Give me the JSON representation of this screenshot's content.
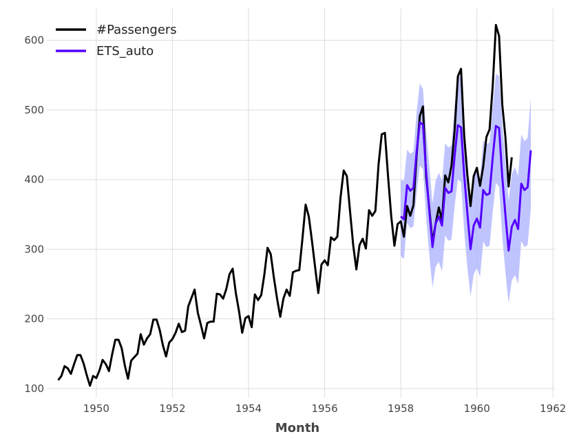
{
  "chart_data": {
    "type": "line",
    "title": "",
    "xlabel": "Month",
    "ylabel": "",
    "xlim": [
      1948.7,
      1962.05
    ],
    "ylim": [
      87,
      646
    ],
    "x_ticks": [
      1950,
      1952,
      1954,
      1956,
      1958,
      1960,
      1962
    ],
    "y_ticks": [
      100,
      200,
      300,
      400,
      500,
      600
    ],
    "grid": true,
    "legend_position": "top-left",
    "series": [
      {
        "name": "#Passengers",
        "color": "#000000",
        "start_year": 1949,
        "values": [
          112,
          118,
          132,
          129,
          121,
          135,
          148,
          148,
          136,
          119,
          104,
          118,
          115,
          126,
          141,
          135,
          125,
          149,
          170,
          170,
          158,
          133,
          114,
          140,
          145,
          150,
          178,
          163,
          172,
          178,
          199,
          199,
          184,
          162,
          146,
          166,
          171,
          180,
          193,
          181,
          183,
          218,
          230,
          242,
          209,
          191,
          172,
          194,
          196,
          196,
          236,
          235,
          229,
          243,
          264,
          272,
          237,
          211,
          180,
          201,
          204,
          188,
          235,
          227,
          234,
          264,
          302,
          293,
          259,
          229,
          203,
          229,
          242,
          233,
          267,
          269,
          270,
          315,
          364,
          347,
          312,
          274,
          237,
          278,
          284,
          277,
          317,
          313,
          318,
          374,
          413,
          405,
          355,
          306,
          271,
          306,
          315,
          301,
          356,
          348,
          355,
          422,
          465,
          467,
          404,
          347,
          305,
          336,
          340,
          318,
          362,
          348,
          363,
          435,
          491,
          505,
          404,
          359,
          310,
          337,
          360,
          342,
          406,
          396,
          420,
          472,
          548,
          559,
          463,
          407,
          362,
          405,
          417,
          391,
          419,
          461,
          472,
          535,
          622,
          606,
          508,
          461,
          390,
          432
        ]
      },
      {
        "name": "ETS_auto",
        "color": "#5500ff",
        "band_color": "#aab0ff",
        "start_year": 1958,
        "values": [
          347,
          343,
          392,
          384,
          388,
          440,
          482,
          479,
          411,
          355,
          303,
          337,
          347,
          334,
          388,
          381,
          383,
          435,
          478,
          475,
          406,
          352,
          300,
          334,
          344,
          331,
          385,
          378,
          380,
          432,
          477,
          474,
          404,
          349,
          298,
          332,
          342,
          329,
          394,
          385,
          389,
          442
        ],
        "band_lower": [
          290,
          286,
          338,
          330,
          333,
          380,
          420,
          415,
          345,
          292,
          245,
          275,
          282,
          268,
          320,
          312,
          314,
          362,
          401,
          396,
          326,
          274,
          232,
          264,
          273,
          260,
          311,
          303,
          305,
          354,
          395,
          390,
          318,
          267,
          222,
          255,
          263,
          250,
          312,
          303,
          306,
          357
        ],
        "band_upper": [
          400,
          398,
          443,
          437,
          440,
          497,
          538,
          530,
          470,
          420,
          366,
          398,
          410,
          398,
          452,
          446,
          449,
          507,
          550,
          546,
          476,
          422,
          368,
          403,
          415,
          402,
          456,
          451,
          453,
          505,
          552,
          548,
          482,
          425,
          370,
          408,
          418,
          405,
          465,
          455,
          460,
          518
        ]
      }
    ]
  }
}
